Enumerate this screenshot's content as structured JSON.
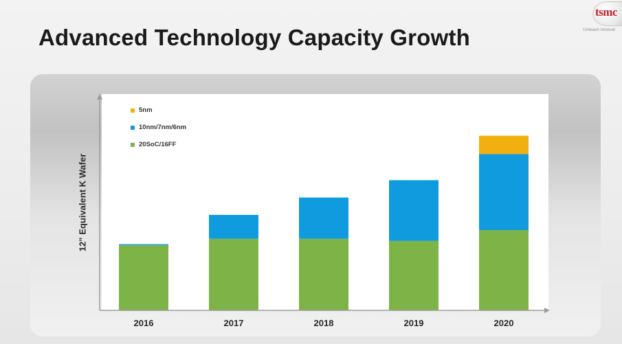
{
  "slide": {
    "title": "Advanced Technology Capacity Growth"
  },
  "logo": {
    "mark_text": "tsmc",
    "tagline": "Unleash Innovat",
    "color": "#c3202a"
  },
  "chart_data": {
    "type": "bar",
    "stacked": true,
    "title": "",
    "xlabel": "",
    "ylabel": "12” Equivalent K Wafer",
    "categories": [
      "2016",
      "2017",
      "2018",
      "2019",
      "2020"
    ],
    "series": [
      {
        "name": "20SoC/16FF",
        "color": "#7db347",
        "values": [
          30,
          33,
          33,
          32,
          37
        ]
      },
      {
        "name": "10nm/7nm/6nm",
        "color": "#0f9bdd",
        "values": [
          0.5,
          11,
          19,
          28,
          35
        ]
      },
      {
        "name": "5nm",
        "color": "#f2af10",
        "values": [
          0,
          0,
          0,
          0,
          8.5
        ]
      }
    ],
    "legend_order": [
      "5nm",
      "10nm/7nm/6nm",
      "20SoC/16FF"
    ],
    "legend_position": "top-left",
    "ylim": [
      0,
      100
    ],
    "y_ticks_shown": false,
    "grid": false
  }
}
